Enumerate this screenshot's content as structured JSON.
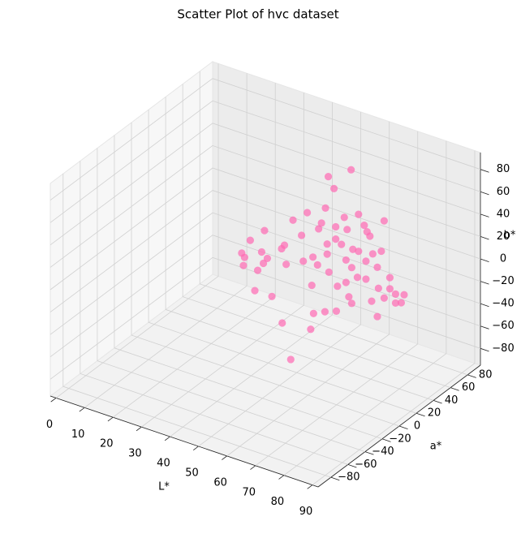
{
  "chart_data": {
    "type": "scatter3d",
    "title": "Scatter Plot of hvc dataset",
    "xlabel": "L*",
    "ylabel": "a*",
    "zlabel": "b*",
    "color": "#ff69b4",
    "x": [
      58,
      50,
      52,
      49,
      72,
      68,
      54,
      49,
      64,
      74,
      67,
      81,
      59,
      58,
      52,
      75,
      76,
      64,
      61,
      39,
      34,
      46,
      66,
      70,
      72,
      80,
      77,
      45,
      56,
      61,
      31,
      32,
      38,
      40,
      50,
      43,
      48,
      58,
      64,
      69,
      79,
      81,
      86,
      90,
      83,
      83,
      73,
      67,
      76,
      79,
      86,
      79,
      83,
      85,
      88,
      81,
      88,
      80,
      81,
      85,
      87,
      47,
      53,
      79,
      83,
      87,
      90,
      68,
      78,
      71
    ],
    "y": [
      57,
      57,
      57,
      57,
      19,
      19,
      19,
      19,
      19,
      19,
      19,
      19,
      19,
      19,
      19,
      19,
      19,
      19,
      19,
      19,
      19,
      19,
      19,
      19,
      19,
      19,
      19,
      19,
      19,
      19,
      19,
      19,
      19,
      19,
      -19,
      -19,
      -19,
      -19,
      -19,
      -19,
      -19,
      -19,
      -19,
      -19,
      19,
      -19,
      -19,
      -19,
      -19,
      -19,
      -19,
      19,
      19,
      19,
      19,
      19,
      -19,
      -19,
      -19,
      19,
      19,
      -19,
      -19,
      -57,
      -57,
      -57,
      -19,
      -57,
      -57,
      -57
    ],
    "z": [
      72,
      59,
      50,
      30,
      66,
      49,
      52,
      41,
      48,
      58,
      59,
      68,
      47,
      41,
      30,
      53,
      50,
      37,
      30,
      23,
      10,
      16,
      34,
      33,
      33,
      40,
      35,
      12,
      14,
      21,
      -4,
      -7,
      3,
      -1,
      25,
      17,
      17,
      31,
      39,
      40,
      53,
      48,
      58,
      56,
      19,
      41,
      37,
      20,
      27,
      33,
      42,
      6,
      9,
      6,
      8,
      -1,
      24,
      21,
      16,
      -2,
      0,
      -2,
      -2,
      27,
      32,
      36,
      12,
      9,
      12,
      -21
    ],
    "xlim": [
      -2,
      92
    ],
    "ylim": [
      -95,
      95
    ],
    "zlim": [
      -95,
      95
    ],
    "xticks": [
      0,
      10,
      20,
      30,
      40,
      50,
      60,
      70,
      80,
      90
    ],
    "yticks": [
      {
        "value": -80,
        "label": "−80"
      },
      {
        "value": -60,
        "label": "−60"
      },
      {
        "value": -40,
        "label": "−40"
      },
      {
        "value": -20,
        "label": "−20"
      },
      0,
      20,
      40,
      60,
      80
    ],
    "zticks": [
      {
        "value": -80,
        "label": "−80"
      },
      {
        "value": -60,
        "label": "−60"
      },
      {
        "value": -40,
        "label": "−40"
      },
      {
        "value": -20,
        "label": "−20"
      },
      0,
      20,
      40,
      60,
      80
    ]
  }
}
